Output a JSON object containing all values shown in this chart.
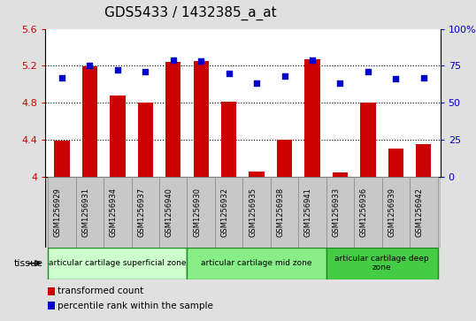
{
  "title": "GDS5433 / 1432385_a_at",
  "samples": [
    "GSM1256929",
    "GSM1256931",
    "GSM1256934",
    "GSM1256937",
    "GSM1256940",
    "GSM1256930",
    "GSM1256932",
    "GSM1256935",
    "GSM1256938",
    "GSM1256941",
    "GSM1256933",
    "GSM1256936",
    "GSM1256939",
    "GSM1256942"
  ],
  "bar_values": [
    4.39,
    5.19,
    4.88,
    4.8,
    5.24,
    5.25,
    4.81,
    4.05,
    4.4,
    5.27,
    4.04,
    4.8,
    4.3,
    4.35
  ],
  "dot_values": [
    67,
    75,
    72,
    71,
    79,
    78,
    70,
    63,
    68,
    79,
    63,
    71,
    66,
    67
  ],
  "ylim_left": [
    4.0,
    5.6
  ],
  "ylim_right": [
    0,
    100
  ],
  "yticks_left": [
    4.0,
    4.4,
    4.8,
    5.2,
    5.6
  ],
  "yticks_right": [
    0,
    25,
    50,
    75,
    100
  ],
  "ytick_labels_left": [
    "4",
    "4.4",
    "4.8",
    "5.2",
    "5.6"
  ],
  "ytick_labels_right": [
    "0",
    "25",
    "50",
    "75",
    "100%"
  ],
  "bar_color": "#cc0000",
  "dot_color": "#0000cc",
  "bar_base": 4.0,
  "groups": [
    {
      "label": "articular cartilage superficial zone",
      "start": 0,
      "end": 5,
      "color": "#ccffcc"
    },
    {
      "label": "articular cartilage mid zone",
      "start": 5,
      "end": 10,
      "color": "#88ee88"
    },
    {
      "label": "articular cartilage deep\nzone",
      "start": 10,
      "end": 14,
      "color": "#44cc44"
    }
  ],
  "tissue_label": "tissue",
  "legend_bar_label": "transformed count",
  "legend_dot_label": "percentile rank within the sample",
  "bg_color": "#e0e0e0",
  "plot_bg_color": "#ffffff",
  "xlabel_bg_color": "#c8c8c8",
  "title_fontsize": 11,
  "tick_fontsize": 8,
  "sample_fontsize": 6,
  "group_fontsize": 6.5,
  "legend_fontsize": 7.5
}
